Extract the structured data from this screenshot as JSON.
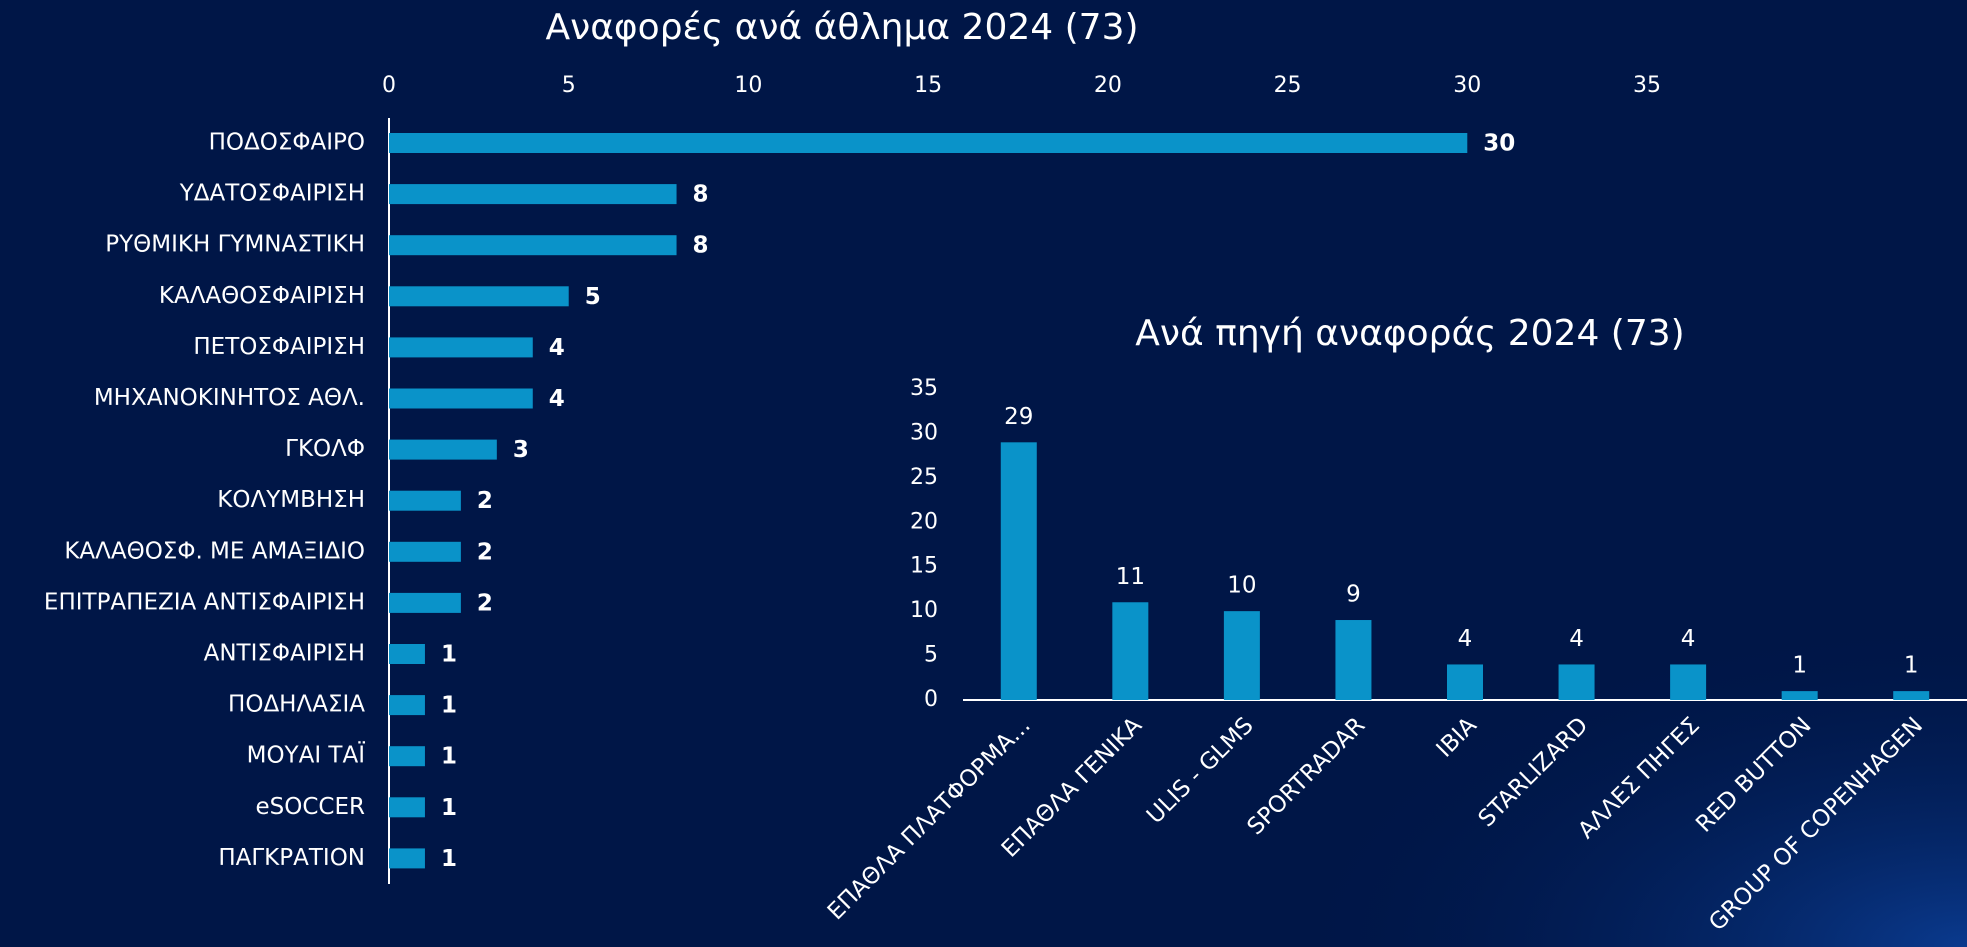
{
  "chart_data": [
    {
      "type": "hbar",
      "title": "Αναφορές ανά άθλημα 2024 (73)",
      "categories": [
        "ΠΟΔΟΣΦΑΙΡΟ",
        "ΥΔΑΤΟΣΦΑΙΡΙΣΗ",
        "ΡΥΘΜΙΚΗ ΓΥΜΝΑΣΤΙΚΗ",
        "ΚΑΛΑΘΟΣΦΑΙΡΙΣΗ",
        "ΠΕΤΟΣΦΑΙΡΙΣΗ",
        "ΜΗΧΑΝΟΚΙΝΗΤΟΣ ΑΘΛ.",
        "ΓΚΟΛΦ",
        "ΚΟΛΥΜΒΗΣΗ",
        "ΚΑΛΑΘΟΣΦ. ΜΕ ΑΜΑΞΙΔΙΟ",
        "ΕΠΙΤΡΑΠΕΖΙΑ ΑΝΤΙΣΦΑΙΡΙΣΗ",
        "ΑΝΤΙΣΦΑΙΡΙΣΗ",
        "ΠΟΔΗΛΑΣΙΑ",
        "ΜΟΥΑΙ ΤΑΪ",
        "eSOCCER",
        "ΠΑΓΚΡΑΤΙΟΝ"
      ],
      "values": [
        30,
        8,
        8,
        5,
        4,
        4,
        3,
        2,
        2,
        2,
        1,
        1,
        1,
        1,
        1
      ],
      "color": "#0a93c9",
      "xlim": [
        0,
        35
      ],
      "xticks": [
        0,
        5,
        10,
        15,
        20,
        25,
        30,
        35
      ],
      "grid": false
    },
    {
      "type": "bar",
      "title": "Ανά πηγή αναφοράς 2024 (73)",
      "categories": [
        "ΕΠΑΘΛΑ ΠΛΑΤΦΟΡΜΑ...",
        "ΕΠΑΘΛΑ ΓΕΝΙΚΑ",
        "ULIS - GLMS",
        "SPORTRADAR",
        "IBIA",
        "STARLIZARD",
        "ΑΛΛΕΣ ΠΗΓΕΣ",
        "RED BUTTON",
        "GROUP OF COPENHAGEN"
      ],
      "values": [
        29,
        11,
        10,
        9,
        4,
        4,
        4,
        1,
        1
      ],
      "color": "#0a93c9",
      "ylim": [
        0,
        35
      ],
      "yticks": [
        0,
        5,
        10,
        15,
        20,
        25,
        30,
        35
      ],
      "grid": false
    }
  ]
}
